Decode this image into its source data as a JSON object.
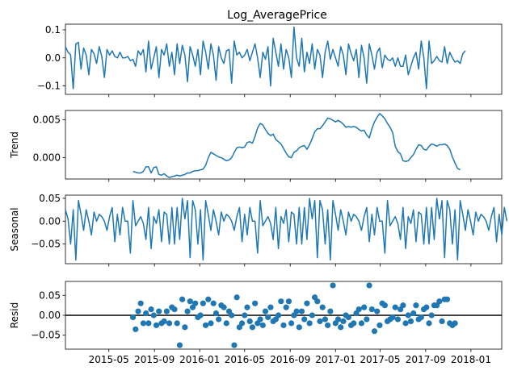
{
  "chart_data": {
    "type": "line",
    "title": "Log_AveragePrice",
    "x_tick_labels": [
      "2015-05",
      "2015-09",
      "2016-01",
      "2016-05",
      "2016-09",
      "2017-01",
      "2017-05",
      "2017-09",
      "2018-01"
    ],
    "x_range": [
      "2015-01-04",
      "2018-03-25"
    ],
    "colors": {
      "series": "#1f77b4",
      "zero_line": "#000000",
      "axes": "#000000"
    },
    "panels": [
      {
        "name": "observed",
        "type": "line",
        "ylabel": "",
        "ylim": [
          -0.13,
          0.12
        ],
        "yticks": [
          0.1,
          0.0,
          -0.1
        ],
        "ytick_labels": [
          "0.1",
          "0.0",
          "−0.1"
        ],
        "values": [
          0.04,
          0.02,
          0.01,
          -0.11,
          0.05,
          0.055,
          -0.04,
          0.035,
          0.01,
          -0.06,
          0.03,
          0.015,
          -0.02,
          0.04,
          0.005,
          -0.07,
          0.03,
          0.01,
          0.025,
          0.005,
          0.0,
          0.02,
          0.0,
          0.0,
          0.005,
          -0.01,
          -0.005,
          -0.03,
          0.025,
          0.01,
          0.03,
          -0.05,
          0.06,
          -0.04,
          0.0,
          0.04,
          -0.07,
          0.03,
          0.01,
          0.05,
          -0.03,
          0.02,
          -0.06,
          0.05,
          -0.02,
          0.045,
          0.01,
          -0.085,
          0.04,
          0.01,
          -0.03,
          0.03,
          -0.06,
          0.06,
          0.02,
          -0.04,
          0.05,
          0.01,
          -0.08,
          0.04,
          0.0,
          -0.02,
          0.025,
          0.03,
          -0.09,
          0.06,
          0.01,
          0.02,
          0.0,
          0.01,
          0.03,
          -0.01,
          0.02,
          0.05,
          0.0,
          -0.07,
          0.02,
          -0.005,
          0.04,
          -0.1,
          0.07,
          0.02,
          -0.03,
          0.05,
          -0.04,
          0.03,
          0.0,
          -0.07,
          0.11,
          0.0,
          -0.03,
          0.07,
          -0.05,
          0.02,
          -0.02,
          0.05,
          -0.04,
          0.03,
          0.01,
          -0.07,
          0.02,
          0.06,
          -0.005,
          0.03,
          0.0,
          -0.03,
          0.04,
          0.01,
          -0.06,
          0.05,
          0.015,
          -0.01,
          0.03,
          -0.07,
          0.045,
          0.0,
          -0.09,
          0.05,
          0.01,
          -0.04,
          0.02,
          0.035,
          -0.035,
          0.01,
          -0.005,
          -0.01,
          0.0,
          -0.03,
          0.0,
          -0.03,
          -0.03,
          0.01,
          -0.06,
          -0.03,
          0.0,
          0.02,
          -0.04,
          0.06,
          0.0,
          -0.11,
          0.06,
          -0.02,
          -0.01,
          0.005,
          -0.01,
          -0.015,
          0.04,
          -0.02,
          0.02,
          0.0,
          -0.015,
          -0.01,
          -0.02,
          0.015,
          0.025
        ]
      },
      {
        "name": "trend",
        "type": "line",
        "ylabel": "Trend",
        "ylim": [
          -0.0028,
          0.0062
        ],
        "yticks": [
          0.005,
          0.0
        ],
        "ytick_labels": [
          "0.005",
          "0.000"
        ],
        "values": [
          null,
          null,
          null,
          null,
          null,
          null,
          null,
          null,
          null,
          null,
          null,
          null,
          null,
          null,
          null,
          null,
          null,
          null,
          null,
          null,
          null,
          null,
          null,
          null,
          null,
          null,
          -0.0018,
          -0.0019,
          -0.002,
          -0.002,
          -0.0018,
          -0.0012,
          -0.0012,
          -0.002,
          -0.0013,
          -0.0012,
          -0.0022,
          -0.0023,
          -0.0021,
          -0.0024,
          -0.0026,
          -0.0025,
          -0.0024,
          -0.0023,
          -0.0024,
          -0.0023,
          -0.0022,
          -0.002,
          -0.002,
          -0.0018,
          -0.0017,
          -0.0017,
          -0.0016,
          -0.0015,
          -0.001,
          0.0,
          0.0007,
          0.0005,
          0.0003,
          0.0001,
          0.0,
          -0.0002,
          -0.0004,
          -0.0003,
          0.0,
          0.0007,
          0.0013,
          0.0014,
          0.0013,
          0.0014,
          0.002,
          0.0021,
          0.0019,
          0.0028,
          0.0039,
          0.0045,
          0.0043,
          0.0037,
          0.0032,
          0.0029,
          0.0031,
          0.0024,
          0.0021,
          0.0018,
          0.0012,
          0.0006,
          0.0001,
          0.0,
          0.0007,
          0.0009,
          0.0013,
          0.0015,
          0.0016,
          0.0011,
          0.0017,
          0.0025,
          0.0034,
          0.0038,
          0.0038,
          0.0042,
          0.0047,
          0.0052,
          0.0051,
          0.0049,
          0.0047,
          0.0049,
          0.0047,
          0.0044,
          0.004,
          0.0041,
          0.004,
          0.0041,
          0.004,
          0.0037,
          0.0035,
          0.0036,
          0.003,
          0.0026,
          0.0038,
          0.0047,
          0.0053,
          0.0058,
          0.0055,
          0.0051,
          0.0045,
          0.004,
          0.0033,
          0.0015,
          0.0008,
          0.0005,
          -0.0004,
          -0.0005,
          -0.0004,
          0.0,
          0.0004,
          0.0011,
          0.0017,
          0.0016,
          0.0011,
          0.001,
          0.0015,
          0.0018,
          0.0017,
          0.0015,
          0.0017,
          0.0017,
          0.0018,
          0.0016,
          0.0011,
          0.0001,
          -0.0007,
          -0.0014,
          -0.0016,
          null,
          null,
          null,
          null,
          null,
          null,
          null,
          null,
          null,
          null,
          null,
          null,
          null,
          null,
          null,
          null,
          null,
          null,
          null,
          null,
          null,
          null,
          null,
          null,
          null,
          null
        ]
      },
      {
        "name": "seasonal",
        "type": "line",
        "ylabel": "Seasonal",
        "ylim": [
          -0.093,
          0.057
        ],
        "yticks": [
          0.05,
          0.0,
          -0.05
        ],
        "ytick_labels": [
          "0.05",
          "0.00",
          "−0.05"
        ],
        "values": [
          0.025,
          0.005,
          -0.05,
          0.025,
          -0.085,
          0.045,
          0.015,
          -0.02,
          0.025,
          0.0,
          -0.03,
          0.02,
          0.0,
          0.015,
          0.01,
          0.0,
          -0.02,
          0.01,
          0.03,
          -0.045,
          0.015,
          -0.03,
          0.03,
          0.0,
          0.0,
          -0.07,
          0.045,
          -0.01,
          0.0,
          0.01,
          -0.005,
          -0.04,
          0.03,
          -0.06,
          0.01,
          -0.005,
          0.025,
          -0.045,
          0.02,
          0.015,
          -0.05,
          0.03,
          -0.05,
          0.03,
          -0.04,
          0.05,
          0.005,
          0.045,
          -0.08,
          0.045,
          0.025,
          -0.05,
          0.025,
          -0.085,
          0.045,
          0.015,
          -0.02,
          0.025,
          0.0,
          -0.03,
          0.02,
          0.0,
          0.015,
          0.01,
          0.0,
          -0.02,
          0.01,
          0.03,
          -0.045,
          0.015,
          -0.03,
          0.03,
          0.0,
          0.0,
          -0.07,
          0.045,
          -0.01,
          0.0,
          0.01,
          -0.005,
          -0.04,
          0.03,
          -0.06,
          0.01,
          -0.005,
          0.025,
          -0.045,
          0.02,
          0.015,
          -0.05,
          0.03,
          -0.05,
          0.03,
          -0.04,
          0.05,
          0.005,
          0.045,
          -0.08,
          0.045,
          0.025,
          -0.05,
          0.025,
          -0.085,
          0.045,
          0.015,
          -0.02,
          0.025,
          0.0,
          -0.03,
          0.02,
          0.0,
          0.015,
          0.01,
          0.0,
          -0.02,
          0.01,
          0.03,
          -0.045,
          0.015,
          -0.03,
          0.03,
          0.0,
          0.0,
          -0.07,
          0.045,
          -0.01,
          0.0,
          0.01,
          -0.005,
          -0.04,
          0.03,
          -0.06,
          0.01,
          -0.005,
          0.025,
          -0.045,
          0.02,
          0.015,
          -0.05,
          0.03,
          -0.05,
          0.03,
          -0.04,
          0.05,
          0.005,
          0.045,
          -0.08,
          0.045,
          0.025,
          -0.05,
          0.025,
          -0.085,
          0.045,
          0.015,
          -0.02,
          0.025,
          0.0,
          -0.03,
          0.02,
          0.0,
          0.015,
          0.01,
          0.0,
          -0.02,
          0.01,
          0.03,
          -0.045,
          0.015,
          -0.03,
          0.03,
          0.0
        ]
      },
      {
        "name": "resid",
        "type": "scatter",
        "ylabel": "Resid",
        "ylim": [
          -0.085,
          0.085
        ],
        "yticks": [
          0.05,
          0.0,
          -0.05
        ],
        "ytick_labels": [
          "0.05",
          "0.00",
          "−0.05"
        ],
        "zero_line": 0.0,
        "values": [
          null,
          null,
          null,
          null,
          null,
          null,
          null,
          null,
          null,
          null,
          null,
          null,
          null,
          null,
          null,
          null,
          null,
          null,
          null,
          null,
          null,
          null,
          null,
          null,
          null,
          null,
          -0.005,
          -0.035,
          0.01,
          0.03,
          -0.02,
          0.005,
          -0.02,
          0.015,
          0.0,
          -0.025,
          0.01,
          -0.02,
          -0.015,
          0.01,
          -0.02,
          0.02,
          0.015,
          -0.02,
          -0.075,
          0.04,
          -0.03,
          0.01,
          0.035,
          0.02,
          0.03,
          -0.005,
          0.0,
          0.03,
          -0.025,
          0.04,
          -0.02,
          0.03,
          0.005,
          -0.01,
          0.025,
          0.02,
          -0.02,
          0.01,
          0.0,
          -0.075,
          0.045,
          -0.03,
          -0.02,
          0.0,
          0.02,
          -0.015,
          -0.03,
          0.03,
          -0.02,
          -0.01,
          -0.025,
          0.01,
          -0.005,
          0.02,
          -0.015,
          -0.01,
          0.0,
          0.035,
          -0.025,
          0.02,
          0.035,
          -0.02,
          0.0,
          0.01,
          -0.03,
          0.01,
          -0.01,
          0.03,
          -0.02,
          0.0,
          0.045,
          0.035,
          -0.015,
          0.02,
          -0.01,
          -0.025,
          0.01,
          0.075,
          -0.02,
          -0.01,
          -0.03,
          -0.015,
          0.0,
          -0.005,
          -0.025,
          -0.02,
          0.005,
          0.015,
          -0.02,
          0.02,
          -0.01,
          0.075,
          0.015,
          -0.04,
          0.01,
          -0.025,
          0.03,
          0.025,
          -0.015,
          -0.01,
          -0.005,
          0.02,
          -0.01,
          0.015,
          0.025,
          -0.02,
          0.0,
          -0.015,
          0.005,
          0.025,
          -0.01,
          -0.005,
          0.015,
          0.02,
          -0.02,
          0.0,
          0.025,
          0.025,
          0.035,
          -0.015,
          0.04,
          0.04,
          -0.02,
          -0.025,
          -0.02,
          null,
          null,
          null,
          null,
          null,
          null,
          null,
          null,
          null,
          null,
          null,
          null,
          null,
          null,
          null,
          null,
          null,
          null,
          null,
          null,
          null,
          null,
          null,
          null,
          null,
          null
        ]
      }
    ]
  }
}
